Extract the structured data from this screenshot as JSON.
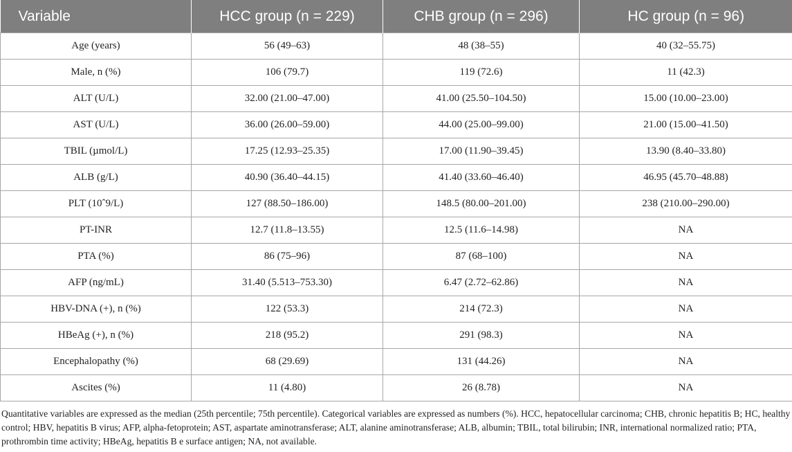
{
  "table": {
    "headers": [
      "Variable",
      "HCC group (n = 229)",
      "CHB group (n = 296)",
      "HC group (n = 96)"
    ],
    "rows": [
      [
        "Age (years)",
        "56 (49–63)",
        "48 (38–55)",
        "40 (32–55.75)"
      ],
      [
        "Male, n (%)",
        "106 (79.7)",
        "119 (72.6)",
        "11 (42.3)"
      ],
      [
        "ALT (U/L)",
        "32.00 (21.00–47.00)",
        "41.00 (25.50–104.50)",
        "15.00 (10.00–23.00)"
      ],
      [
        "AST (U/L)",
        "36.00 (26.00–59.00)",
        "44.00 (25.00–99.00)",
        "21.00 (15.00–41.50)"
      ],
      [
        "TBIL (µmol/L)",
        "17.25 (12.93–25.35)",
        "17.00 (11.90–39.45)",
        "13.90 (8.40–33.80)"
      ],
      [
        "ALB (g/L)",
        "40.90 (36.40–44.15)",
        "41.40 (33.60–46.40)",
        "46.95 (45.70–48.88)"
      ],
      [
        "PLT (10ˆ9/L)",
        "127 (88.50–186.00)",
        "148.5 (80.00–201.00)",
        "238 (210.00–290.00)"
      ],
      [
        "PT-INR",
        "12.7 (11.8–13.55)",
        "12.5 (11.6–14.98)",
        "NA"
      ],
      [
        "PTA (%)",
        "86 (75–96)",
        "87 (68–100)",
        "NA"
      ],
      [
        "AFP (ng/mL)",
        "31.40 (5.513–753.30)",
        "6.47 (2.72–62.86)",
        "NA"
      ],
      [
        "HBV-DNA (+), n (%)",
        "122 (53.3)",
        "214 (72.3)",
        "NA"
      ],
      [
        "HBeAg (+), n (%)",
        "218 (95.2)",
        "291 (98.3)",
        "NA"
      ],
      [
        "Encephalopathy (%)",
        "68 (29.69)",
        "131 (44.26)",
        "NA"
      ],
      [
        "Ascites (%)",
        "11 (4.80)",
        "26 (8.78)",
        "NA"
      ]
    ]
  },
  "footnote": "Quantitative variables are expressed as the median (25th percentile; 75th percentile). Categorical variables are expressed as numbers (%). HCC, hepatocellular carcinoma; CHB, chronic hepatitis B; HC, healthy control; HBV, hepatitis B virus; AFP, alpha-fetoprotein; AST, aspartate aminotransferase; ALT, alanine aminotransferase; ALB, albumin; TBIL, total bilirubin; INR, international normalized ratio; PTA, prothrombin time activity; HBeAg, hepatitis B e surface antigen; NA, not available.",
  "colors": {
    "header_bg": "#7f7f7f",
    "header_text": "#ffffff",
    "grid": "#a6a6a6"
  }
}
